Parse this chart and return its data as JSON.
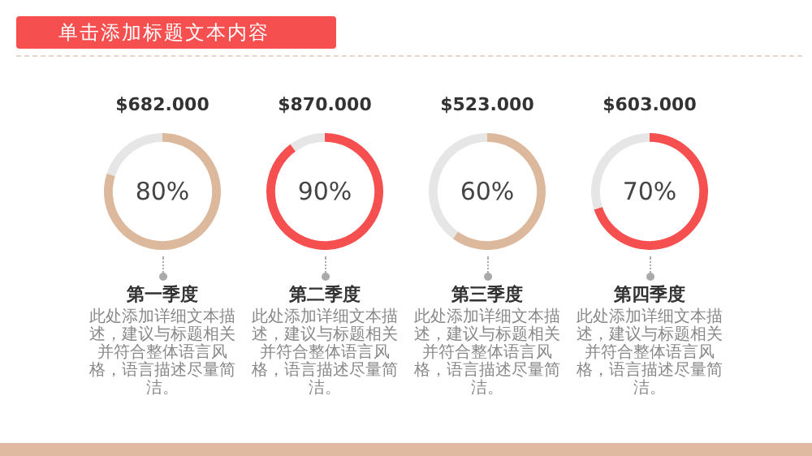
{
  "chart_data": [
    {
      "type": "donut",
      "title": "$682.000",
      "subtitle": "第一季度",
      "categories": [
        null,
        null
      ],
      "values": [
        80,
        20
      ],
      "colors": [
        "#dcb89c",
        "#e6e6e6"
      ],
      "annotations": [
        "单击添加标题文本内容",
        "80%",
        "此处添加详细文本描述，建议与标题相关并符合整体语言风格，语言描述尽量简洁。"
      ]
    },
    {
      "type": "donut",
      "title": "$870.000",
      "subtitle": "第二季度",
      "categories": [
        null,
        null
      ],
      "values": [
        90,
        10
      ],
      "colors": [
        "#f5504f",
        "#e6e6e6"
      ],
      "annotations": [
        "90%",
        "此处添加详细文本描述，建议与标题相关并符合整体语言风格，语言描述尽量简洁。"
      ]
    },
    {
      "type": "donut",
      "title": "$523.000",
      "subtitle": "第三季度",
      "categories": [
        null,
        null
      ],
      "values": [
        60,
        40
      ],
      "colors": [
        "#dcb89c",
        "#e6e6e6"
      ],
      "annotations": [
        "60%",
        "此处添加详细文本描述，建议与标题相关并符合整体语言风格，语言描述尽量简洁。"
      ]
    },
    {
      "type": "donut",
      "title": "$603.000",
      "subtitle": "第四季度",
      "categories": [
        null,
        null
      ],
      "values": [
        70,
        30
      ],
      "colors": [
        "#f5504f",
        "#e6e6e6"
      ],
      "annotations": [
        "70%",
        "此处添加详细文本描述，建议与标题相关并符合整体语言风格，语言描述尽量简洁。"
      ]
    }
  ]
}
